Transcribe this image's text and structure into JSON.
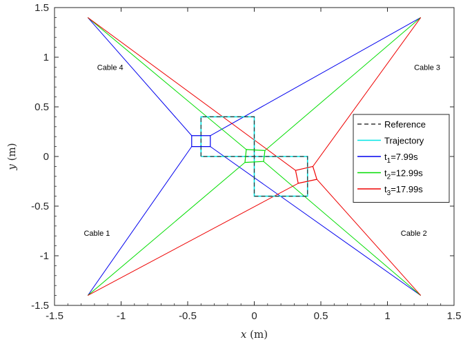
{
  "chart_data": {
    "type": "line",
    "xlabel_var": "x",
    "xlabel_unit": " (m)",
    "ylabel_var": "y",
    "ylabel_unit": " (m)",
    "xlim": [
      -1.5,
      1.5
    ],
    "ylim": [
      -1.5,
      1.5
    ],
    "xticks": [
      -1.5,
      -1,
      -0.5,
      0,
      0.5,
      1,
      1.5
    ],
    "xtick_labels": [
      "-1.5",
      "-1",
      "-0.5",
      "0",
      "0.5",
      "1",
      "1.5"
    ],
    "yticks": [
      -1.5,
      -1,
      -0.5,
      0,
      0.5,
      1,
      1.5
    ],
    "ytick_labels": [
      "-1.5",
      "-1",
      "-0.5",
      "0",
      "0.5",
      "1",
      "1.5"
    ],
    "grid": false,
    "legend_position": "right",
    "anchors": [
      {
        "label": "Cable 1",
        "x": -1.25,
        "y": -1.4,
        "label_x": -1.28,
        "label_y": -0.8
      },
      {
        "label": "Cable 2",
        "x": 1.25,
        "y": -1.4,
        "label_x": 1.1,
        "label_y": -0.8
      },
      {
        "label": "Cable 3",
        "x": 1.25,
        "y": 1.4,
        "label_x": 1.2,
        "label_y": 0.87
      },
      {
        "label": "Cable 4",
        "x": -1.25,
        "y": 1.4,
        "label_x": -1.18,
        "label_y": 0.87
      }
    ],
    "series": [
      {
        "name": "Reference",
        "color": "#333333",
        "dashed": true,
        "points": [
          [
            -0.4,
            0
          ],
          [
            -0.4,
            0.4
          ],
          [
            0,
            0.4
          ],
          [
            0,
            -0.4
          ],
          [
            0.4,
            -0.4
          ],
          [
            0.4,
            0
          ],
          [
            -0.4,
            0
          ]
        ]
      },
      {
        "name": "Trajectory",
        "color": "#00e5e5",
        "dashed": false,
        "points": [
          [
            -0.4,
            0
          ],
          [
            -0.4,
            0.4
          ],
          [
            0,
            0.4
          ],
          [
            0,
            -0.4
          ],
          [
            0.4,
            -0.4
          ],
          [
            0.4,
            0
          ],
          [
            -0.4,
            0
          ]
        ]
      }
    ],
    "snapshots": [
      {
        "name": "t1=7.99s",
        "label_main": "t",
        "label_sub": "1",
        "label_rest": "=7.99s",
        "color": "#0000ee",
        "corners": [
          [
            -0.47,
            0.1
          ],
          [
            -0.33,
            0.1
          ],
          [
            -0.33,
            0.21
          ],
          [
            -0.47,
            0.21
          ]
        ],
        "cable_attach": [
          [
            -0.4,
            0.15
          ],
          [
            -0.33,
            0.28
          ],
          [
            -0.33,
            0.28
          ],
          [
            -0.47,
            0.28
          ]
        ]
      },
      {
        "name": "t2=12.99s",
        "label_main": "t",
        "label_sub": "2",
        "label_rest": "=12.99s",
        "color": "#00dd00",
        "corners": [
          [
            -0.07,
            -0.06
          ],
          [
            0.07,
            -0.05
          ],
          [
            0.08,
            0.06
          ],
          [
            -0.06,
            0.07
          ]
        ],
        "cable_attach": [
          [
            -0.07,
            -0.06
          ],
          [
            0.07,
            -0.05
          ],
          [
            0.08,
            0.06
          ],
          [
            -0.06,
            0.07
          ]
        ]
      },
      {
        "name": "t3=17.99s",
        "label_main": "t",
        "label_sub": "3",
        "label_rest": "=17.99s",
        "color": "#ee0000",
        "corners": [
          [
            0.33,
            -0.27
          ],
          [
            0.47,
            -0.23
          ],
          [
            0.44,
            -0.1
          ],
          [
            0.31,
            -0.14
          ]
        ],
        "cable_attach": [
          [
            0.33,
            -0.27
          ],
          [
            0.47,
            -0.23
          ],
          [
            0.44,
            -0.1
          ],
          [
            0.31,
            -0.14
          ]
        ]
      }
    ]
  }
}
